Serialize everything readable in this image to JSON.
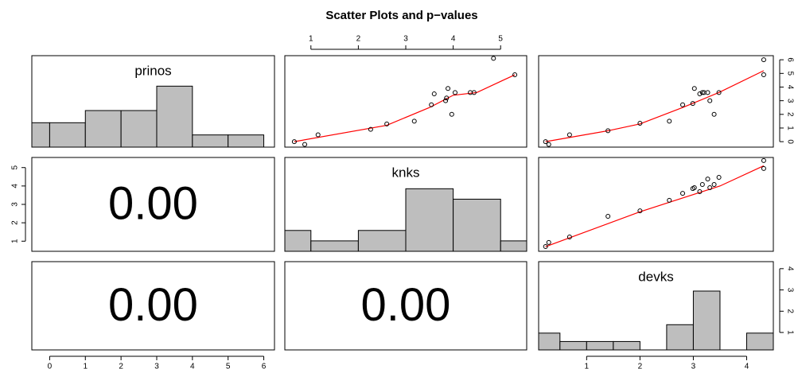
{
  "title": "Scatter Plots and p−values",
  "chart_data": [
    {
      "type": "histogram",
      "label": "prinos",
      "bins": [
        -0.5,
        0,
        1,
        2,
        3,
        4,
        5,
        6
      ],
      "counts": [
        2,
        2,
        3,
        3,
        5,
        1,
        1
      ],
      "xlim": [
        -0.5,
        6.3
      ],
      "ylim": [
        0,
        7.5
      ],
      "color": "#bebebe"
    },
    {
      "type": "scatter",
      "x": [
        0.65,
        0.87,
        1.15,
        2.26,
        2.6,
        3.18,
        3.54,
        3.6,
        3.84,
        3.86,
        3.89,
        4.04,
        3.97,
        4.36,
        4.44,
        4.85,
        5.3
      ],
      "y": [
        0.0,
        -0.2,
        0.5,
        0.9,
        1.3,
        1.5,
        2.7,
        3.5,
        3.0,
        3.2,
        3.9,
        3.6,
        2.0,
        3.6,
        3.6,
        6.1,
        4.9
      ],
      "fit": {
        "x": [
          0.65,
          2.6,
          3.5,
          4.0,
          4.5,
          5.3
        ],
        "y": [
          0.0,
          1.2,
          2.5,
          3.4,
          3.6,
          4.9
        ],
        "color": "#ff0000"
      },
      "xlim": [
        0.45,
        5.55
      ],
      "ylim": [
        -0.4,
        6.3
      ],
      "xticks": [
        1,
        2,
        3,
        4,
        5
      ]
    },
    {
      "type": "scatter",
      "x": [
        0.23,
        0.29,
        0.68,
        1.4,
        2.0,
        2.55,
        2.8,
        2.99,
        3.02,
        3.12,
        3.17,
        3.2,
        3.27,
        3.31,
        3.39,
        3.48,
        4.32,
        4.32
      ],
      "y": [
        0.0,
        -0.2,
        0.5,
        0.8,
        1.35,
        1.5,
        2.7,
        2.8,
        3.9,
        3.5,
        3.6,
        3.6,
        3.6,
        3.0,
        2.0,
        3.6,
        6.0,
        4.9
      ],
      "fit": {
        "x": [
          0.23,
          1.4,
          2.0,
          2.8,
          3.48,
          4.32
        ],
        "y": [
          0.0,
          0.8,
          1.3,
          2.5,
          3.6,
          5.2
        ],
        "color": "#ff0000"
      },
      "xlim": [
        0.1,
        4.5
      ],
      "ylim": [
        -0.4,
        6.3
      ],
      "yticks": [
        0,
        1,
        2,
        3,
        4,
        5,
        6
      ]
    },
    {
      "type": "text",
      "text": "0.00",
      "ylim": [
        0.45,
        5.55
      ],
      "yticks": [
        1,
        2,
        3,
        4,
        5
      ]
    },
    {
      "type": "histogram",
      "label": "knks",
      "bins": [
        0.45,
        1,
        2,
        3,
        4,
        5,
        5.55
      ],
      "counts": [
        2,
        1,
        2,
        6,
        5,
        1
      ],
      "xlim": [
        0.45,
        5.55
      ],
      "ylim": [
        0,
        9
      ],
      "color": "#bebebe"
    },
    {
      "type": "scatter",
      "x": [
        0.23,
        0.29,
        0.68,
        1.4,
        2.0,
        2.55,
        2.8,
        2.99,
        3.02,
        3.12,
        3.17,
        3.27,
        3.31,
        3.39,
        3.48,
        4.32,
        4.32
      ],
      "y": [
        0.71,
        0.93,
        1.23,
        2.35,
        2.65,
        3.22,
        3.6,
        3.86,
        3.91,
        3.69,
        4.08,
        4.38,
        3.91,
        4.08,
        4.47,
        5.38,
        4.95
      ],
      "fit": {
        "x": [
          0.23,
          2.0,
          3.5,
          4.32
        ],
        "y": [
          0.7,
          2.6,
          4.0,
          5.1
        ],
        "color": "#ff0000"
      },
      "xlim": [
        0.1,
        4.5
      ],
      "ylim": [
        0.45,
        5.55
      ]
    },
    {
      "type": "text",
      "text": "0.00",
      "xlim": [
        -0.5,
        6.3
      ],
      "xticks": [
        0,
        1,
        2,
        3,
        4,
        5,
        6
      ]
    },
    {
      "type": "text",
      "text": "0.00"
    },
    {
      "type": "histogram",
      "label": "devks",
      "bins": [
        0.1,
        0.5,
        1,
        1.5,
        2,
        2.5,
        3,
        3.5,
        4,
        4.5
      ],
      "counts": [
        2,
        1,
        1,
        1,
        0,
        3,
        7,
        0,
        2
      ],
      "xlim": [
        0.1,
        4.5
      ],
      "ylim": [
        0,
        10.5
      ],
      "color": "#bebebe",
      "xticks": [
        1,
        2,
        3,
        4
      ],
      "y2lim": [
        0.18,
        4.33
      ],
      "y2ticks": [
        1,
        2,
        3,
        4
      ]
    }
  ]
}
